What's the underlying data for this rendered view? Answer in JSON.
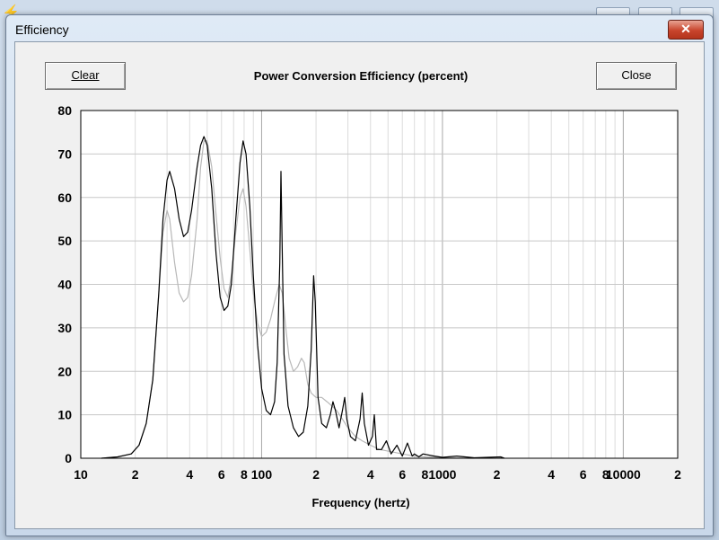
{
  "dialog": {
    "title": "Efficiency",
    "close_label": "✕",
    "clear_button": "Clear",
    "close_button": "Close"
  },
  "chart_data": {
    "type": "line",
    "title": "Power Conversion Efficiency (percent)",
    "xlabel": "Frequency (hertz)",
    "ylabel": "",
    "x_scale": "log",
    "xlim": [
      10,
      20000
    ],
    "ylim": [
      0,
      80
    ],
    "y_ticks": [
      0,
      10,
      20,
      30,
      40,
      50,
      60,
      70,
      80
    ],
    "x_tick_labels": [
      {
        "v": 10,
        "t": "10"
      },
      {
        "v": 20,
        "t": "2"
      },
      {
        "v": 40,
        "t": "4"
      },
      {
        "v": 60,
        "t": "6"
      },
      {
        "v": 80,
        "t": "8"
      },
      {
        "v": 100,
        "t": "100"
      },
      {
        "v": 200,
        "t": "2"
      },
      {
        "v": 400,
        "t": "4"
      },
      {
        "v": 600,
        "t": "6"
      },
      {
        "v": 800,
        "t": "8"
      },
      {
        "v": 1000,
        "t": "1000"
      },
      {
        "v": 2000,
        "t": "2"
      },
      {
        "v": 4000,
        "t": "4"
      },
      {
        "v": 6000,
        "t": "6"
      },
      {
        "v": 8000,
        "t": "8"
      },
      {
        "v": 10000,
        "t": "10000"
      },
      {
        "v": 20000,
        "t": "2"
      }
    ],
    "grid": true,
    "series": [
      {
        "color": "#000000",
        "points": [
          [
            13,
            0
          ],
          [
            16,
            0.3
          ],
          [
            19,
            1
          ],
          [
            21,
            3
          ],
          [
            23,
            8
          ],
          [
            25,
            18
          ],
          [
            27,
            38
          ],
          [
            28.5,
            55
          ],
          [
            30,
            64
          ],
          [
            31,
            66
          ],
          [
            33,
            62
          ],
          [
            35,
            55
          ],
          [
            37,
            51
          ],
          [
            39,
            52
          ],
          [
            41,
            57
          ],
          [
            44,
            67
          ],
          [
            46,
            72
          ],
          [
            48,
            74
          ],
          [
            50,
            72
          ],
          [
            53,
            62
          ],
          [
            56,
            47
          ],
          [
            59,
            37
          ],
          [
            62,
            34
          ],
          [
            65,
            35
          ],
          [
            68,
            40
          ],
          [
            72,
            55
          ],
          [
            76,
            68
          ],
          [
            79,
            73
          ],
          [
            82,
            70
          ],
          [
            86,
            58
          ],
          [
            90,
            42
          ],
          [
            95,
            26
          ],
          [
            100,
            16
          ],
          [
            106,
            11
          ],
          [
            112,
            10
          ],
          [
            118,
            13
          ],
          [
            122,
            22
          ],
          [
            126,
            45
          ],
          [
            128,
            66
          ],
          [
            130,
            48
          ],
          [
            133,
            24
          ],
          [
            140,
            12
          ],
          [
            150,
            7
          ],
          [
            160,
            5
          ],
          [
            170,
            6
          ],
          [
            180,
            12
          ],
          [
            188,
            25
          ],
          [
            194,
            42
          ],
          [
            198,
            36
          ],
          [
            205,
            14
          ],
          [
            215,
            8
          ],
          [
            228,
            7
          ],
          [
            240,
            10
          ],
          [
            248,
            13
          ],
          [
            256,
            11
          ],
          [
            268,
            7
          ],
          [
            280,
            11
          ],
          [
            288,
            14
          ],
          [
            296,
            9
          ],
          [
            310,
            5
          ],
          [
            330,
            4
          ],
          [
            350,
            9
          ],
          [
            360,
            15
          ],
          [
            370,
            8
          ],
          [
            390,
            3
          ],
          [
            410,
            5
          ],
          [
            420,
            10
          ],
          [
            432,
            2
          ],
          [
            460,
            2
          ],
          [
            490,
            4
          ],
          [
            520,
            1
          ],
          [
            560,
            3
          ],
          [
            600,
            0.5
          ],
          [
            640,
            3.5
          ],
          [
            680,
            0.5
          ],
          [
            700,
            1
          ],
          [
            740,
            0.3
          ],
          [
            780,
            1
          ],
          [
            900,
            0.5
          ],
          [
            1000,
            0.2
          ],
          [
            1200,
            0.5
          ],
          [
            1500,
            0.1
          ],
          [
            2100,
            0.3
          ],
          [
            2200,
            0
          ]
        ]
      },
      {
        "color": "#b8b8b8",
        "points": [
          [
            13,
            0
          ],
          [
            16,
            0.3
          ],
          [
            19,
            1
          ],
          [
            21,
            3
          ],
          [
            23,
            8
          ],
          [
            25,
            18
          ],
          [
            27,
            38
          ],
          [
            28.5,
            52
          ],
          [
            30,
            57
          ],
          [
            31,
            55
          ],
          [
            33,
            45
          ],
          [
            35,
            38
          ],
          [
            37,
            36
          ],
          [
            39,
            37
          ],
          [
            41,
            42
          ],
          [
            44,
            55
          ],
          [
            46,
            67
          ],
          [
            48,
            73
          ],
          [
            50,
            73
          ],
          [
            53,
            67
          ],
          [
            56,
            56
          ],
          [
            59,
            46
          ],
          [
            62,
            39
          ],
          [
            65,
            37
          ],
          [
            68,
            42
          ],
          [
            72,
            52
          ],
          [
            76,
            60
          ],
          [
            79,
            62
          ],
          [
            82,
            58
          ],
          [
            86,
            48
          ],
          [
            90,
            38
          ],
          [
            95,
            31
          ],
          [
            100,
            28
          ],
          [
            106,
            29
          ],
          [
            112,
            32
          ],
          [
            118,
            36
          ],
          [
            125,
            40
          ],
          [
            130,
            38
          ],
          [
            136,
            30
          ],
          [
            142,
            23
          ],
          [
            150,
            20
          ],
          [
            158,
            21
          ],
          [
            166,
            23
          ],
          [
            172,
            22
          ],
          [
            180,
            17
          ],
          [
            188,
            15
          ],
          [
            200,
            14
          ],
          [
            215,
            14
          ],
          [
            230,
            13
          ],
          [
            245,
            12
          ],
          [
            260,
            11
          ],
          [
            280,
            9
          ],
          [
            300,
            7
          ],
          [
            330,
            5
          ],
          [
            360,
            4
          ],
          [
            400,
            3
          ],
          [
            450,
            2
          ],
          [
            520,
            1.5
          ],
          [
            600,
            1
          ],
          [
            700,
            0.5
          ],
          [
            800,
            0.3
          ],
          [
            1000,
            0.1
          ],
          [
            1500,
            0
          ]
        ]
      }
    ]
  }
}
